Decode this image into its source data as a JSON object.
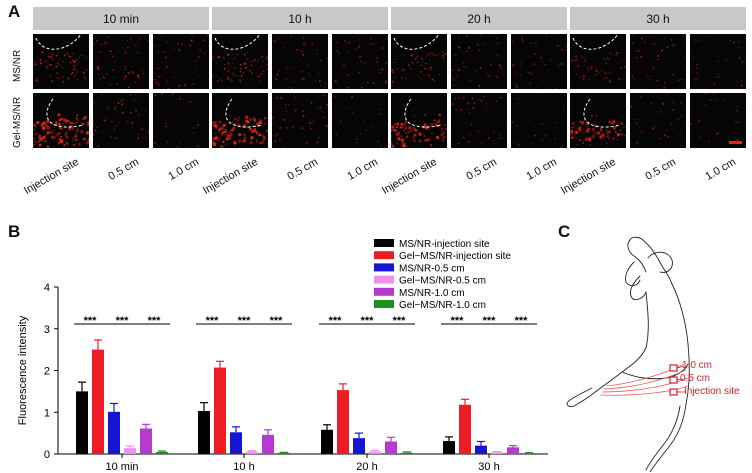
{
  "panel_a": {
    "letter": "A",
    "time_headers": [
      "10 min",
      "10 h",
      "20 h",
      "30 h"
    ],
    "row_labels": [
      "MS/NR",
      "Gel-MS/NR"
    ],
    "column_labels": [
      "Injection site",
      "0.5 cm",
      "1.0 cm"
    ]
  },
  "panel_b": {
    "letter": "B"
  },
  "panel_c": {
    "letter": "C",
    "labels": [
      "1.0 cm",
      "0.5 cm",
      "Injection site"
    ]
  },
  "colors": {
    "signal_red": "#e3241c",
    "header_gray": "#c8c8c8",
    "tile_black": "#050505"
  },
  "chart_data": {
    "type": "bar",
    "categories": [
      "10 min",
      "10 h",
      "20 h",
      "30 h"
    ],
    "ylabel": "Fluorescence intensity",
    "xlabel": "",
    "ylim": [
      0,
      4
    ],
    "yticks": [
      0,
      1,
      2,
      3,
      4
    ],
    "legend_position": "top-right",
    "series": [
      {
        "name": "MS/NR-injection site",
        "color": "#000000",
        "values": [
          1.5,
          1.03,
          0.58,
          0.31
        ],
        "errors": [
          0.22,
          0.2,
          0.12,
          0.1
        ]
      },
      {
        "name": "Gel−MS/NR-injection site",
        "color": "#ee1c24",
        "values": [
          2.5,
          2.07,
          1.53,
          1.18
        ],
        "errors": [
          0.23,
          0.15,
          0.15,
          0.13
        ]
      },
      {
        "name": "MS/NR-0.5 cm",
        "color": "#1515d2",
        "values": [
          1.01,
          0.52,
          0.38,
          0.2
        ],
        "errors": [
          0.2,
          0.13,
          0.12,
          0.1
        ]
      },
      {
        "name": "Gel−MS/NR-0.5 cm",
        "color": "#ef8ff0",
        "values": [
          0.14,
          0.06,
          0.06,
          0.04
        ],
        "errors": [
          0.05,
          0.02,
          0.03,
          0.02
        ]
      },
      {
        "name": "MS/NR-1.0 cm",
        "color": "#b43ad0",
        "values": [
          0.61,
          0.46,
          0.3,
          0.16
        ],
        "errors": [
          0.1,
          0.12,
          0.1,
          0.04
        ]
      },
      {
        "name": "Gel−MS/NR-1.0 cm",
        "color": "#1e8f1e",
        "values": [
          0.05,
          0.03,
          0.03,
          0.02
        ],
        "errors": [
          0.02,
          0.01,
          0.02,
          0.01
        ]
      }
    ],
    "significance": {
      "label": "***",
      "pairs_per_category": 3
    }
  }
}
